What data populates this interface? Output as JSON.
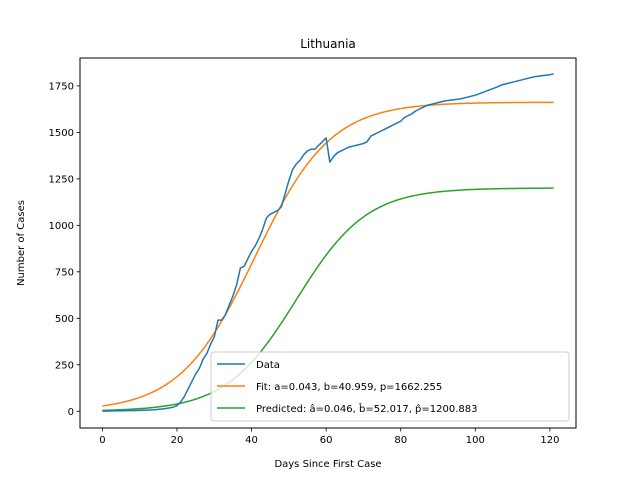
{
  "chart_data": {
    "type": "line",
    "title": "Lithuania",
    "xlabel": "Days Since First Case",
    "ylabel": "Number of Cases",
    "xlim": [
      -6,
      127
    ],
    "ylim": [
      -90,
      1900
    ],
    "xticks": [
      0,
      20,
      40,
      60,
      80,
      100,
      120
    ],
    "yticks": [
      0,
      250,
      500,
      750,
      1000,
      1250,
      1500,
      1750
    ],
    "grid": false,
    "legend_position": "lower-right",
    "series": [
      {
        "name": "Data",
        "color": "#1f77b4",
        "points": [
          [
            0,
            1
          ],
          [
            3,
            2
          ],
          [
            6,
            3
          ],
          [
            9,
            4
          ],
          [
            12,
            6
          ],
          [
            14,
            8
          ],
          [
            16,
            12
          ],
          [
            17,
            15
          ],
          [
            18,
            18
          ],
          [
            19,
            22
          ],
          [
            20,
            30
          ],
          [
            21,
            50
          ],
          [
            22,
            80
          ],
          [
            23,
            120
          ],
          [
            24,
            160
          ],
          [
            25,
            200
          ],
          [
            26,
            230
          ],
          [
            27,
            280
          ],
          [
            28,
            310
          ],
          [
            29,
            360
          ],
          [
            30,
            400
          ],
          [
            31,
            490
          ],
          [
            32,
            490
          ],
          [
            33,
            520
          ],
          [
            34,
            570
          ],
          [
            35,
            620
          ],
          [
            36,
            680
          ],
          [
            37,
            770
          ],
          [
            38,
            780
          ],
          [
            39,
            820
          ],
          [
            40,
            860
          ],
          [
            41,
            890
          ],
          [
            42,
            930
          ],
          [
            43,
            980
          ],
          [
            44,
            1040
          ],
          [
            45,
            1060
          ],
          [
            46,
            1070
          ],
          [
            47,
            1080
          ],
          [
            48,
            1100
          ],
          [
            49,
            1170
          ],
          [
            50,
            1240
          ],
          [
            51,
            1300
          ],
          [
            52,
            1330
          ],
          [
            53,
            1350
          ],
          [
            54,
            1380
          ],
          [
            55,
            1400
          ],
          [
            56,
            1410
          ],
          [
            57,
            1410
          ],
          [
            58,
            1430
          ],
          [
            59,
            1450
          ],
          [
            60,
            1470
          ],
          [
            61,
            1340
          ],
          [
            62,
            1370
          ],
          [
            63,
            1390
          ],
          [
            64,
            1400
          ],
          [
            65,
            1410
          ],
          [
            66,
            1420
          ],
          [
            67,
            1425
          ],
          [
            68,
            1430
          ],
          [
            69,
            1435
          ],
          [
            70,
            1440
          ],
          [
            71,
            1450
          ],
          [
            72,
            1480
          ],
          [
            73,
            1490
          ],
          [
            74,
            1500
          ],
          [
            75,
            1510
          ],
          [
            76,
            1520
          ],
          [
            77,
            1530
          ],
          [
            78,
            1540
          ],
          [
            79,
            1550
          ],
          [
            80,
            1560
          ],
          [
            81,
            1580
          ],
          [
            82,
            1590
          ],
          [
            83,
            1600
          ],
          [
            84,
            1615
          ],
          [
            85,
            1625
          ],
          [
            86,
            1635
          ],
          [
            87,
            1645
          ],
          [
            88,
            1650
          ],
          [
            89,
            1655
          ],
          [
            90,
            1660
          ],
          [
            92,
            1670
          ],
          [
            94,
            1675
          ],
          [
            96,
            1680
          ],
          [
            98,
            1690
          ],
          [
            100,
            1700
          ],
          [
            102,
            1715
          ],
          [
            104,
            1730
          ],
          [
            106,
            1745
          ],
          [
            107,
            1755
          ],
          [
            108,
            1760
          ],
          [
            110,
            1770
          ],
          [
            112,
            1780
          ],
          [
            114,
            1790
          ],
          [
            116,
            1800
          ],
          [
            118,
            1805
          ],
          [
            120,
            1810
          ],
          [
            121,
            1815
          ]
        ]
      },
      {
        "name": "Fit: a=0.043, b=40.959, p=1662.255",
        "color": "#ff7f0e",
        "function": "logistic",
        "params": {
          "a": 0.043,
          "b": 40.959,
          "p": 1662.255
        },
        "x_range": [
          0,
          121
        ]
      },
      {
        "name": "Predicted: â=0.046, b̂=52.017, p̂=1200.883",
        "color": "#2ca02c",
        "function": "logistic",
        "params": {
          "a": 0.046,
          "b": 52.017,
          "p": 1200.883
        },
        "x_range": [
          0,
          121
        ]
      }
    ]
  }
}
